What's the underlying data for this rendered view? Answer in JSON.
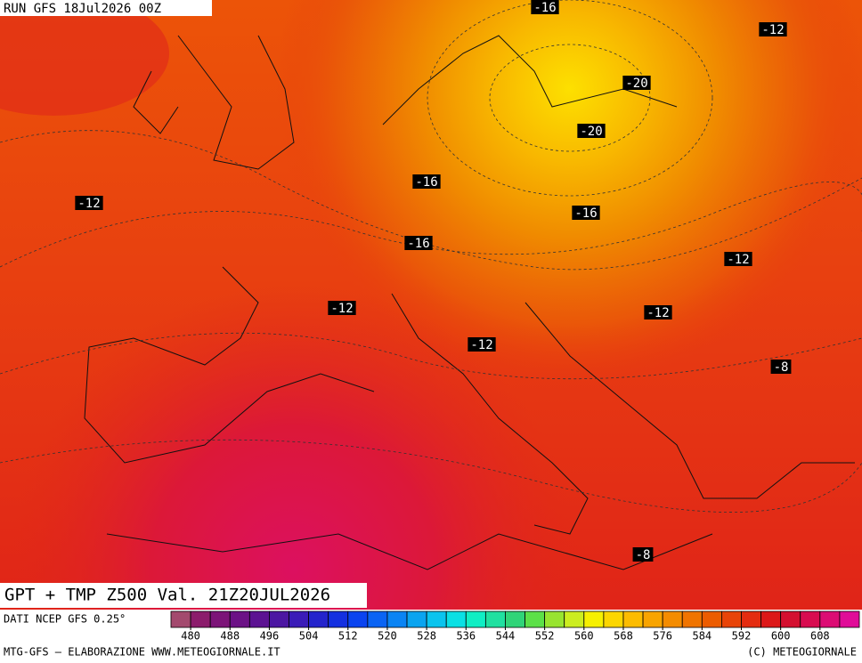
{
  "header": {
    "run": "RUN GFS 18Jul2026 00Z"
  },
  "isotherm_labels": [
    "-16",
    "-12",
    "-20",
    "-20",
    "-16",
    "-12",
    "-16",
    "-16",
    "-12",
    "-12",
    "-12",
    "-12",
    "-8",
    "-8"
  ],
  "footer": {
    "title": "GPT + TMP Z500 Val. 21Z20JUL2026",
    "source": "DATI NCEP GFS 0.25°",
    "credit": "MTG-GFS — ELABORAZIONE WWW.METEOGIORNALE.IT",
    "copyright": "(C) METEOGIORNALE"
  },
  "colorbar": {
    "lim": [
      476,
      616
    ],
    "ticks": [
      480,
      488,
      496,
      504,
      512,
      520,
      528,
      536,
      544,
      552,
      560,
      568,
      576,
      584,
      592,
      600,
      608
    ],
    "colors": [
      "#a34a6e",
      "#8c1c6c",
      "#7c1478",
      "#6c1286",
      "#5c1292",
      "#4c16a2",
      "#3a1cb8",
      "#2424cc",
      "#1430e0",
      "#0a44f0",
      "#0a64f4",
      "#0a84f4",
      "#0aa4f0",
      "#0ac4ee",
      "#0ae0e4",
      "#10eec4",
      "#20e0a0",
      "#30d478",
      "#5ce048",
      "#98e430",
      "#cced20",
      "#f6f000",
      "#fcd600",
      "#fcbc00",
      "#f8a400",
      "#f48c00",
      "#f07400",
      "#ec5c00",
      "#e84408",
      "#e42c10",
      "#dc1818",
      "#d41030",
      "#d80c50",
      "#dc0c74",
      "#e00c98"
    ]
  }
}
